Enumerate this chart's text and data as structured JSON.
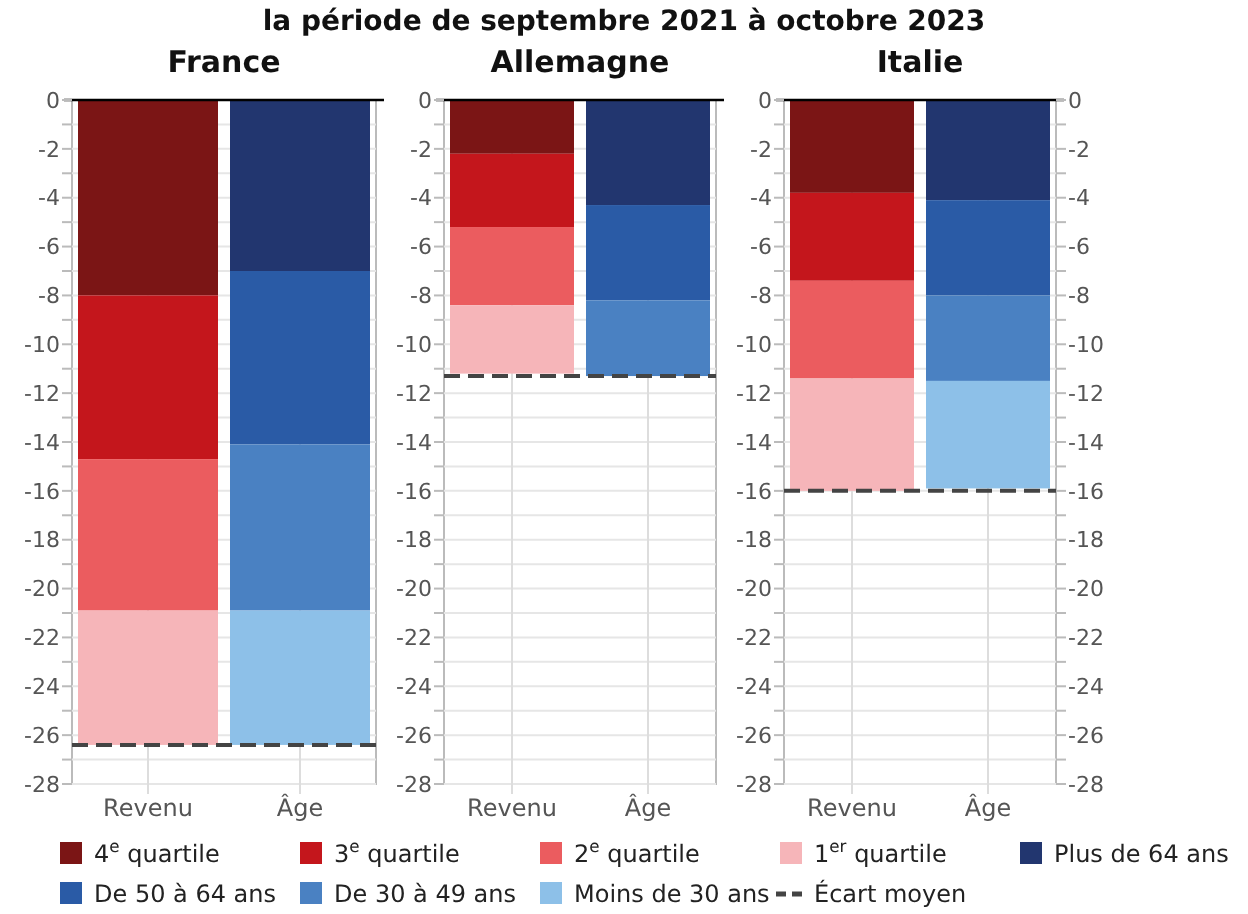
{
  "chart_data": [
    {
      "type": "bar",
      "title": "France",
      "stacked": true,
      "categories": [
        "Revenu",
        "Âge"
      ],
      "annotations": [
        "la période de septembre 2021 à octobre 2023"
      ],
      "legend": "bottom",
      "grid": true,
      "ylim": [
        -28,
        0
      ],
      "yticks": [
        0,
        {
          "value": -1,
          "label": null
        },
        -2,
        {
          "value": -3,
          "label": null
        },
        -4,
        {
          "value": -5,
          "label": null
        },
        -6,
        {
          "value": -7,
          "label": null
        },
        -8,
        {
          "value": -9,
          "label": null
        },
        -10,
        {
          "value": -11,
          "label": null
        },
        -12,
        {
          "value": -13,
          "label": null
        },
        -14,
        {
          "value": -15,
          "label": null
        },
        -16,
        {
          "value": -17,
          "label": null
        },
        -18,
        {
          "value": -19,
          "label": null
        },
        -20,
        {
          "value": -21,
          "label": null
        },
        -22,
        {
          "value": -23,
          "label": null
        },
        -24,
        {
          "value": -25,
          "label": null
        },
        -26,
        {
          "value": -27,
          "label": null
        },
        -28
      ],
      "ref_lines": [
        {
          "axis": "y",
          "value": -26.4,
          "label": "Écart moyen",
          "color": "#444444",
          "line_style": "dashed"
        }
      ],
      "series": [
        {
          "name": "4$^{e}$ quartile",
          "color": "#7b1515",
          "values": [
            -8.0,
            null
          ]
        },
        {
          "name": "3$^{e}$ quartile",
          "color": "#c4161c",
          "values": [
            -6.7,
            null
          ]
        },
        {
          "name": "2$^{e}$ quartile",
          "color": "#eb5c5f",
          "values": [
            -6.2,
            null
          ]
        },
        {
          "name": "1$^{er}$ quartile",
          "color": "#f6b5b9",
          "values": [
            -5.5,
            null
          ]
        },
        {
          "name": "Plus de 64 ans",
          "color": "#22366f",
          "values": [
            null,
            -7.0
          ]
        },
        {
          "name": "De 50 à 64 ans",
          "color": "#2a5ba6",
          "values": [
            null,
            -7.1
          ]
        },
        {
          "name": "De 30 à 49 ans",
          "color": "#4a81c2",
          "values": [
            null,
            -6.8
          ]
        },
        {
          "name": "Moins de 30 ans",
          "color": "#8dc0e8",
          "values": [
            null,
            -5.5
          ]
        }
      ]
    },
    {
      "type": "bar",
      "title": "Allemagne",
      "stacked": true,
      "categories": [
        "Revenu",
        "Âge"
      ],
      "grid": true,
      "ylim": [
        -28,
        0
      ],
      "yticks": [
        0,
        {
          "value": -1,
          "label": null
        },
        -2,
        {
          "value": -3,
          "label": null
        },
        -4,
        {
          "value": -5,
          "label": null
        },
        -6,
        {
          "value": -7,
          "label": null
        },
        -8,
        {
          "value": -9,
          "label": null
        },
        -10,
        {
          "value": -11,
          "label": null
        },
        -12,
        {
          "value": -13,
          "label": null
        },
        -14,
        {
          "value": -15,
          "label": null
        },
        -16,
        {
          "value": -17,
          "label": null
        },
        -18,
        {
          "value": -19,
          "label": null
        },
        -20,
        {
          "value": -21,
          "label": null
        },
        -22,
        {
          "value": -23,
          "label": null
        },
        -24,
        {
          "value": -25,
          "label": null
        },
        -26,
        {
          "value": -27,
          "label": null
        },
        -28
      ],
      "ref_lines": [
        {
          "axis": "y",
          "value": -11.3,
          "color": "#444444",
          "line_style": "dashed"
        }
      ],
      "series": [
        {
          "color": "#7b1515",
          "values": [
            -2.2,
            null
          ]
        },
        {
          "color": "#c4161c",
          "values": [
            -3.0,
            null
          ]
        },
        {
          "color": "#eb5c5f",
          "values": [
            -3.2,
            null
          ]
        },
        {
          "color": "#f6b5b9",
          "values": [
            -2.8,
            null
          ]
        },
        {
          "color": "#22366f",
          "values": [
            null,
            -4.3
          ]
        },
        {
          "color": "#2a5ba6",
          "values": [
            null,
            -3.9
          ]
        },
        {
          "color": "#4a81c2",
          "values": [
            null,
            -3.1
          ]
        }
      ]
    },
    {
      "type": "bar",
      "title": "Italie",
      "stacked": true,
      "categories": [
        "Revenu",
        "Âge"
      ],
      "grid": true,
      "ylim": [
        -28,
        0
      ],
      "yticks": [
        0,
        {
          "value": -1,
          "label": null
        },
        -2,
        {
          "value": -3,
          "label": null
        },
        -4,
        {
          "value": -5,
          "label": null
        },
        -6,
        {
          "value": -7,
          "label": null
        },
        -8,
        {
          "value": -9,
          "label": null
        },
        -10,
        {
          "value": -11,
          "label": null
        },
        -12,
        {
          "value": -13,
          "label": null
        },
        -14,
        {
          "value": -15,
          "label": null
        },
        -16,
        {
          "value": -17,
          "label": null
        },
        -18,
        {
          "value": -19,
          "label": null
        },
        -20,
        {
          "value": -21,
          "label": null
        },
        -22,
        {
          "value": -23,
          "label": null
        },
        -24,
        {
          "value": -25,
          "label": null
        },
        -26,
        {
          "value": -27,
          "label": null
        },
        -28
      ],
      "y2lim": [
        -28,
        0
      ],
      "y2ticks": [
        0,
        {
          "value": -1,
          "label": null
        },
        -2,
        {
          "value": -3,
          "label": null
        },
        -4,
        {
          "value": -5,
          "label": null
        },
        -6,
        {
          "value": -7,
          "label": null
        },
        -8,
        {
          "value": -9,
          "label": null
        },
        -10,
        {
          "value": -11,
          "label": null
        },
        -12,
        {
          "value": -13,
          "label": null
        },
        -14,
        {
          "value": -15,
          "label": null
        },
        -16,
        {
          "value": -17,
          "label": null
        },
        -18,
        {
          "value": -19,
          "label": null
        },
        -20,
        {
          "value": -21,
          "label": null
        },
        -22,
        {
          "value": -23,
          "label": null
        },
        -24,
        {
          "value": -25,
          "label": null
        },
        -26,
        {
          "value": -27,
          "label": null
        },
        -28
      ],
      "ref_lines": [
        {
          "axis": "y",
          "value": -16.0,
          "color": "#444444",
          "line_style": "dashed"
        }
      ],
      "series": [
        {
          "color": "#7b1515",
          "values": [
            -3.8,
            null
          ]
        },
        {
          "color": "#c4161c",
          "values": [
            -3.6,
            null
          ]
        },
        {
          "color": "#eb5c5f",
          "values": [
            -4.0,
            null
          ]
        },
        {
          "color": "#f6b5b9",
          "values": [
            -4.6,
            null
          ]
        },
        {
          "color": "#22366f",
          "values": [
            null,
            -4.1
          ]
        },
        {
          "color": "#2a5ba6",
          "values": [
            null,
            -3.9
          ]
        },
        {
          "color": "#4a81c2",
          "values": [
            null,
            -3.5
          ]
        },
        {
          "color": "#8dc0e8",
          "values": [
            null,
            -4.4
          ]
        }
      ]
    }
  ]
}
